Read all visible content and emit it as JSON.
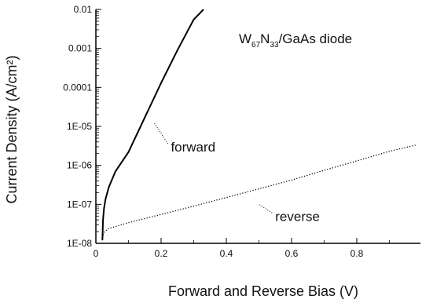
{
  "chart_data": {
    "type": "line",
    "xlabel": "Forward and Reverse Bias (V)",
    "ylabel": "Current Density (A/cm²)",
    "xlim": [
      0,
      1.0
    ],
    "ylim": [
      1e-08,
      0.01
    ],
    "yscale": "log",
    "x_ticks": [
      {
        "value": 0,
        "label": "0"
      },
      {
        "value": 0.2,
        "label": "0.2"
      },
      {
        "value": 0.4,
        "label": "0.4"
      },
      {
        "value": 0.6,
        "label": "0.6"
      },
      {
        "value": 0.8,
        "label": "0.8"
      }
    ],
    "y_ticks": [
      {
        "value": 0.01,
        "label": "0.01"
      },
      {
        "value": 0.001,
        "label": "0.001"
      },
      {
        "value": 0.0001,
        "label": "0.0001"
      },
      {
        "value": 1e-05,
        "label": "1E-05"
      },
      {
        "value": 1e-06,
        "label": "1E-06"
      },
      {
        "value": 1e-07,
        "label": "1E-07"
      },
      {
        "value": 1e-08,
        "label": "1E-08"
      }
    ],
    "grid": false,
    "annotation": {
      "main": "W",
      "sub1": "67",
      "mid": "N",
      "sub2": "33",
      "rest": "/GaAs diode"
    },
    "series": [
      {
        "name": "forward",
        "style": "solid",
        "color": "#000000",
        "label_x": 0.23,
        "label_y": 3e-06,
        "pointer_x": 0.18,
        "pointer_y": 1.2e-05,
        "x": [
          0.02,
          0.022,
          0.025,
          0.03,
          0.04,
          0.06,
          0.1,
          0.15,
          0.2,
          0.25,
          0.3,
          0.33
        ],
        "y": [
          1.2e-08,
          4e-08,
          8e-08,
          1.4e-07,
          2.8e-07,
          7e-07,
          2.2e-06,
          1.7e-05,
          0.00013,
          0.0009,
          0.0055,
          0.01
        ]
      },
      {
        "name": "reverse",
        "style": "dotted",
        "color": "#000000",
        "label_x": 0.55,
        "label_y": 5e-08,
        "pointer_x": 0.5,
        "pointer_y": 1e-07,
        "x": [
          0.02,
          0.022,
          0.025,
          0.03,
          0.04,
          0.06,
          0.1,
          0.2,
          0.3,
          0.4,
          0.5,
          0.6,
          0.7,
          0.8,
          0.9,
          0.98
        ],
        "y": [
          1.2e-08,
          1.6e-08,
          1.9e-08,
          2.1e-08,
          2.4e-08,
          2.7e-08,
          3.4e-08,
          5.5e-08,
          9e-08,
          1.5e-07,
          2.5e-07,
          4.2e-07,
          7.5e-07,
          1.3e-06,
          2.3e-06,
          3.3e-06
        ]
      }
    ]
  }
}
